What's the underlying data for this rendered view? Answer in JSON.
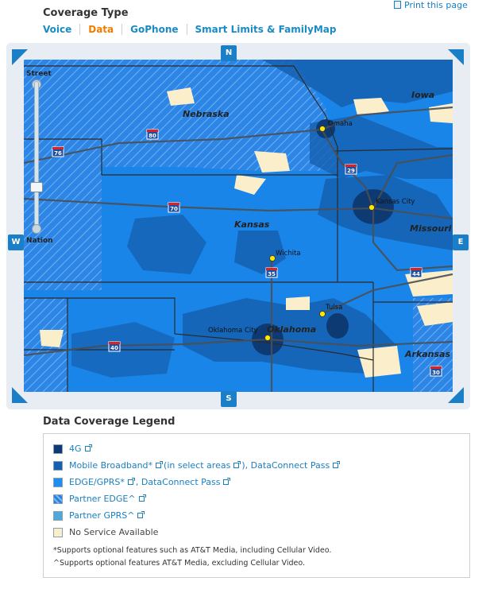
{
  "print_label": "Print this page",
  "coverage_title": "Coverage Type",
  "tabs": [
    {
      "label": "Voice",
      "active": false
    },
    {
      "label": "Data",
      "active": true
    },
    {
      "label": "GoPhone",
      "active": false
    },
    {
      "label": "Smart Limits & FamilyMap",
      "active": false
    }
  ],
  "map": {
    "nav": {
      "north": "N",
      "south": "S",
      "east": "E",
      "west": "W"
    },
    "zoom": {
      "top_label": "Street",
      "bottom_label": "Nation"
    },
    "state_labels": [
      "Nebraska",
      "Iowa",
      "Kansas",
      "Missouri",
      "Oklahoma",
      "Arkansas"
    ],
    "city_labels": [
      "Omaha",
      "Kansas City",
      "Wichita",
      "Tulsa",
      "Oklahoma City"
    ],
    "interstate_labels": [
      "76",
      "80",
      "29",
      "70",
      "35",
      "44",
      "40",
      "30"
    ]
  },
  "legend": {
    "title": "Data Coverage Legend",
    "items": [
      {
        "label": "4G",
        "color": "#0e3a73"
      },
      {
        "label": "Mobile Broadband*",
        "extra1": "(in select areas",
        "extra1_close": ")",
        "extra2": ", DataConnect Pass",
        "color": "#1560b0"
      },
      {
        "label": "EDGE/GPRS*",
        "extra2": ", DataConnect Pass",
        "color": "#1e8ff0"
      },
      {
        "label": "Partner EDGE^",
        "color": "#2a7fe0"
      },
      {
        "label": "Partner GPRS^",
        "color": "#4fa8d8"
      },
      {
        "label": "No Service Available",
        "color": "#fbeecb"
      }
    ],
    "footnotes": [
      "*Supports optional features such as AT&T Media, including Cellular Video.",
      "^Supports optional features AT&T Media, excluding Cellular Video."
    ]
  }
}
